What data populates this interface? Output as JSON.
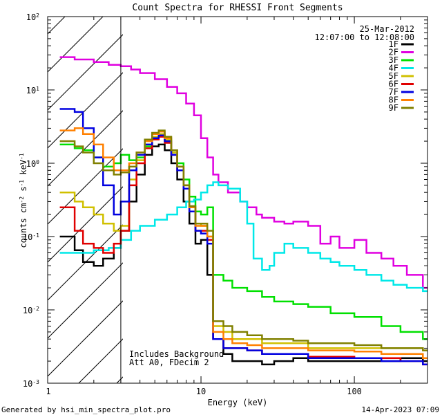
{
  "chart_data": {
    "type": "line",
    "title": "Count Spectra for RHESSI Front Segments",
    "date": "25-Mar-2012",
    "time_range": "12:07:00 to 12:08:00",
    "xlabel": "Energy (keV)",
    "ylabel_parts": {
      "a": "counts cm",
      "b": "-2",
      "c": " s",
      "d": "-1",
      "e": " keV",
      "f": "-1"
    },
    "xscale": "log",
    "yscale": "log",
    "xlim": [
      1,
      300
    ],
    "ylim": [
      0.001,
      100
    ],
    "x_ticks": [
      {
        "v": 10,
        "label": "10"
      },
      {
        "v": 100,
        "label": "100"
      }
    ],
    "x_tick_1_label": "1",
    "y_ticks": [
      {
        "base": "10",
        "exp": "-3"
      },
      {
        "base": "10",
        "exp": "-2"
      },
      {
        "base": "10",
        "exp": "-1"
      },
      {
        "base": "10",
        "exp": "0"
      },
      {
        "base": "10",
        "exp": "1"
      },
      {
        "base": "10",
        "exp": "2"
      }
    ],
    "hatched_region_kev": [
      1,
      3
    ],
    "annotations": [
      "Includes Background",
      "Att A0, FDecim 2"
    ],
    "footer_left": "Generated by hsi_min_spectra_plot.pro",
    "footer_right": "14-Apr-2023 07:09",
    "legend_position": "top-right",
    "series": [
      {
        "name": "1F",
        "color": "#000000",
        "x": [
          1.2,
          1.5,
          1.7,
          2.0,
          2.3,
          2.7,
          3.0,
          3.4,
          3.8,
          4.3,
          4.8,
          5.3,
          5.8,
          6.4,
          7.0,
          7.7,
          8.4,
          9.2,
          10,
          11,
          12,
          14,
          16,
          20,
          25,
          30,
          40,
          50,
          70,
          100,
          150,
          200,
          280
        ],
        "y": [
          0.1,
          0.065,
          0.045,
          0.04,
          0.05,
          0.07,
          0.12,
          0.3,
          0.7,
          1.3,
          1.7,
          1.8,
          1.5,
          1.0,
          0.6,
          0.3,
          0.15,
          0.08,
          0.09,
          0.03,
          0.004,
          0.0025,
          0.002,
          0.002,
          0.0018,
          0.002,
          0.0022,
          0.002,
          0.002,
          0.002,
          0.002,
          0.0022,
          0.002
        ]
      },
      {
        "name": "2F",
        "color": "#e000e0",
        "x": [
          1.2,
          1.5,
          2.0,
          2.5,
          3.0,
          3.5,
          4.0,
          5.0,
          6.0,
          7.0,
          8.0,
          9.0,
          10,
          11,
          12,
          13,
          15,
          18,
          20,
          23,
          25,
          30,
          35,
          40,
          50,
          60,
          70,
          80,
          100,
          120,
          150,
          180,
          220,
          280
        ],
        "y": [
          28,
          26,
          24,
          22,
          21,
          19,
          17,
          14,
          11,
          9,
          6.5,
          4.5,
          2.2,
          1.2,
          0.7,
          0.55,
          0.4,
          0.3,
          0.25,
          0.2,
          0.18,
          0.16,
          0.15,
          0.16,
          0.14,
          0.08,
          0.1,
          0.07,
          0.09,
          0.06,
          0.05,
          0.04,
          0.03,
          0.02
        ]
      },
      {
        "name": "3F",
        "color": "#00e000",
        "x": [
          1.2,
          1.5,
          1.7,
          2.0,
          2.3,
          2.7,
          3.0,
          3.4,
          3.8,
          4.3,
          4.8,
          5.3,
          5.8,
          6.4,
          7.0,
          7.7,
          8.4,
          9.2,
          10,
          11,
          12,
          14,
          16,
          20,
          25,
          30,
          40,
          50,
          70,
          100,
          150,
          200,
          280
        ],
        "y": [
          1.8,
          1.6,
          1.5,
          1.2,
          0.9,
          1.0,
          1.3,
          1.1,
          1.2,
          1.7,
          2.2,
          2.4,
          2.0,
          1.4,
          1.0,
          0.6,
          0.35,
          0.22,
          0.2,
          0.25,
          0.03,
          0.025,
          0.02,
          0.018,
          0.015,
          0.013,
          0.012,
          0.011,
          0.009,
          0.008,
          0.006,
          0.005,
          0.004
        ]
      },
      {
        "name": "4F",
        "color": "#00e8e8",
        "x": [
          1.2,
          1.5,
          2.0,
          2.5,
          3.0,
          3.5,
          4.0,
          5.0,
          6.0,
          7.0,
          8.0,
          9.0,
          10,
          11,
          12,
          13,
          15,
          18,
          20,
          22,
          25,
          28,
          30,
          35,
          40,
          50,
          60,
          70,
          80,
          100,
          120,
          150,
          180,
          220,
          280
        ],
        "y": [
          0.06,
          0.06,
          0.065,
          0.07,
          0.09,
          0.12,
          0.14,
          0.17,
          0.2,
          0.25,
          0.3,
          0.32,
          0.4,
          0.5,
          0.55,
          0.5,
          0.45,
          0.3,
          0.15,
          0.05,
          0.035,
          0.04,
          0.06,
          0.08,
          0.07,
          0.06,
          0.05,
          0.045,
          0.04,
          0.035,
          0.03,
          0.025,
          0.022,
          0.02,
          0.018
        ]
      },
      {
        "name": "5F",
        "color": "#d0c000",
        "x": [
          1.2,
          1.5,
          1.7,
          2.0,
          2.3,
          2.7,
          3.0,
          3.4,
          3.8,
          4.3,
          4.8,
          5.3,
          5.8,
          6.4,
          7.0,
          7.7,
          8.4,
          9.2,
          10,
          11,
          12,
          14,
          16,
          20,
          25,
          30,
          40,
          50,
          70,
          100,
          150,
          200,
          280
        ],
        "y": [
          0.4,
          0.3,
          0.25,
          0.2,
          0.15,
          0.12,
          0.14,
          0.6,
          1.1,
          1.8,
          2.3,
          2.5,
          2.1,
          1.4,
          0.9,
          0.5,
          0.25,
          0.15,
          0.14,
          0.1,
          0.006,
          0.005,
          0.004,
          0.004,
          0.0035,
          0.0035,
          0.0035,
          0.003,
          0.003,
          0.003,
          0.003,
          0.003,
          0.0028
        ]
      },
      {
        "name": "6F",
        "color": "#e00000",
        "x": [
          1.2,
          1.5,
          1.7,
          2.0,
          2.3,
          2.7,
          3.0,
          3.4,
          3.8,
          4.3,
          4.8,
          5.3,
          5.8,
          6.4,
          7.0,
          7.7,
          8.4,
          9.2,
          10,
          11,
          12,
          14,
          16,
          20,
          25,
          30,
          40,
          50,
          70,
          100,
          150,
          200,
          280
        ],
        "y": [
          0.25,
          0.12,
          0.08,
          0.07,
          0.06,
          0.08,
          0.12,
          0.5,
          1.0,
          1.6,
          2.1,
          2.3,
          1.9,
          1.3,
          0.8,
          0.45,
          0.22,
          0.12,
          0.12,
          0.09,
          0.004,
          0.003,
          0.003,
          0.0028,
          0.0025,
          0.0025,
          0.0025,
          0.0023,
          0.0023,
          0.0022,
          0.0022,
          0.002,
          0.0018
        ]
      },
      {
        "name": "7F",
        "color": "#0000e0",
        "x": [
          1.2,
          1.5,
          1.7,
          2.0,
          2.3,
          2.7,
          3.0,
          3.4,
          3.8,
          4.3,
          4.8,
          5.3,
          5.8,
          6.4,
          7.0,
          7.7,
          8.4,
          9.2,
          10,
          11,
          12,
          14,
          16,
          20,
          25,
          30,
          40,
          50,
          70,
          100,
          150,
          200,
          280
        ],
        "y": [
          5.5,
          5.0,
          3.0,
          1.2,
          0.5,
          0.2,
          0.3,
          0.8,
          1.3,
          1.8,
          2.2,
          2.4,
          2.0,
          1.3,
          0.8,
          0.45,
          0.22,
          0.12,
          0.11,
          0.08,
          0.004,
          0.003,
          0.003,
          0.0028,
          0.0025,
          0.0025,
          0.0025,
          0.0022,
          0.0022,
          0.0022,
          0.002,
          0.002,
          0.0018
        ]
      },
      {
        "name": "8F",
        "color": "#ff8000",
        "x": [
          1.2,
          1.5,
          1.7,
          2.0,
          2.3,
          2.7,
          3.0,
          3.4,
          3.8,
          4.3,
          4.8,
          5.3,
          5.8,
          6.4,
          7.0,
          7.7,
          8.4,
          9.2,
          10,
          11,
          12,
          14,
          16,
          20,
          25,
          30,
          40,
          50,
          70,
          100,
          150,
          200,
          280
        ],
        "y": [
          2.8,
          3.0,
          2.5,
          1.8,
          1.2,
          0.8,
          0.8,
          1.0,
          1.4,
          2.0,
          2.5,
          2.7,
          2.2,
          1.5,
          0.9,
          0.5,
          0.25,
          0.14,
          0.14,
          0.1,
          0.005,
          0.004,
          0.0035,
          0.0033,
          0.003,
          0.003,
          0.003,
          0.0028,
          0.0028,
          0.0027,
          0.0025,
          0.0025,
          0.0022
        ]
      },
      {
        "name": "9F",
        "color": "#808000",
        "x": [
          1.2,
          1.5,
          1.7,
          2.0,
          2.3,
          2.7,
          3.0,
          3.4,
          3.8,
          4.3,
          4.8,
          5.3,
          5.8,
          6.4,
          7.0,
          7.7,
          8.4,
          9.2,
          10,
          11,
          12,
          14,
          16,
          20,
          25,
          30,
          40,
          50,
          70,
          100,
          150,
          200,
          280
        ],
        "y": [
          2.0,
          1.7,
          1.4,
          1.0,
          0.8,
          0.7,
          0.75,
          0.9,
          1.4,
          2.1,
          2.6,
          2.8,
          2.3,
          1.5,
          0.9,
          0.5,
          0.26,
          0.15,
          0.15,
          0.12,
          0.007,
          0.006,
          0.005,
          0.0045,
          0.004,
          0.004,
          0.0038,
          0.0035,
          0.0035,
          0.0033,
          0.003,
          0.003,
          0.0028
        ]
      }
    ]
  }
}
